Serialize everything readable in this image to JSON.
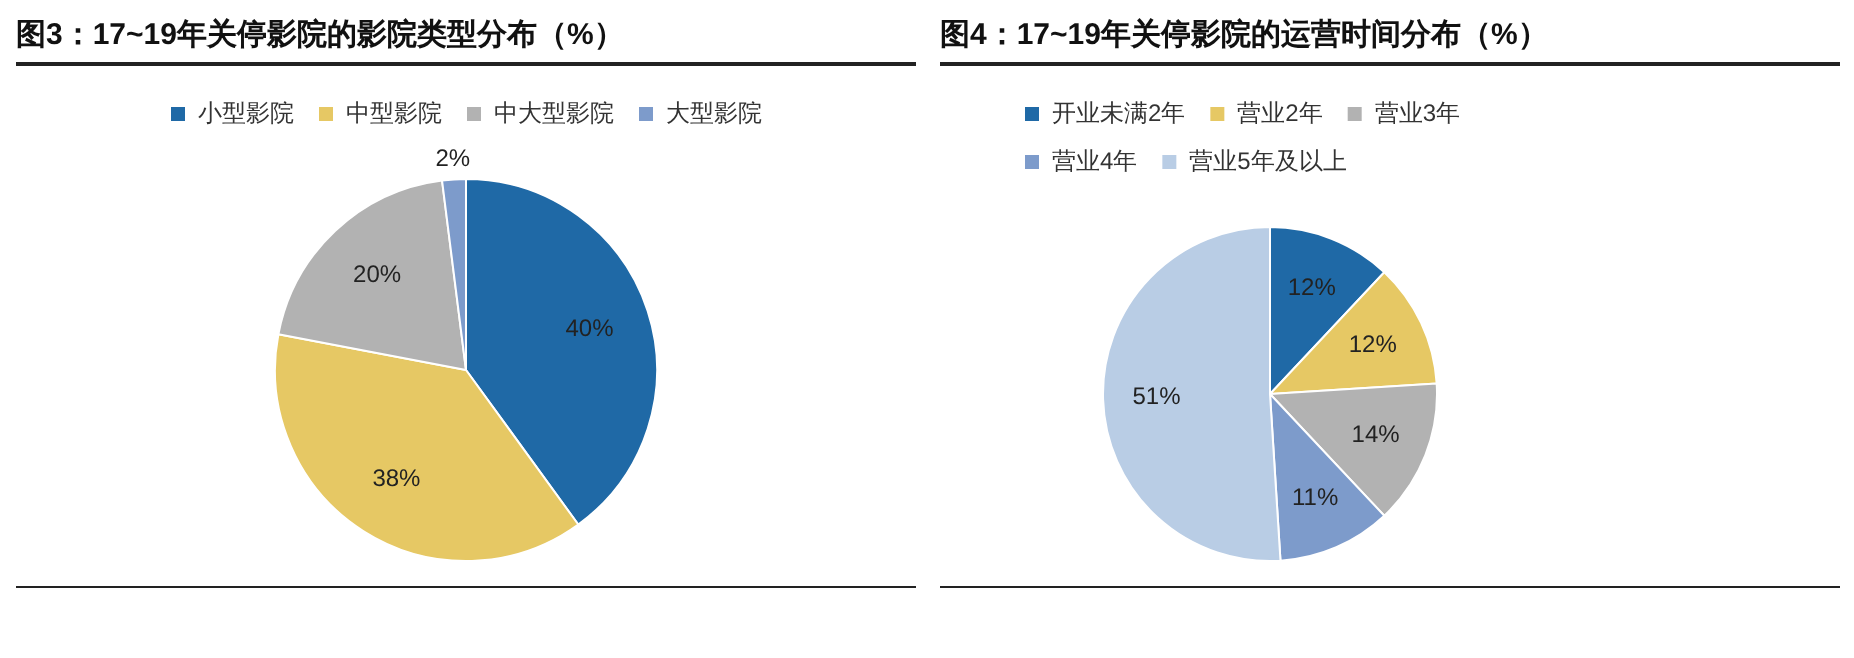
{
  "chart_data": [
    {
      "type": "pie",
      "title": "图3：17~19年关停影院的影院类型分布（%）",
      "categories": [
        "小型影院",
        "中型影院",
        "中大型影院",
        "大型影院"
      ],
      "values": [
        40,
        38,
        20,
        2
      ],
      "colors": [
        "#1f69a6",
        "#e6c864",
        "#b2b2b2",
        "#7d9bcb"
      ],
      "value_labels": [
        "40%",
        "38%",
        "20%",
        "2%"
      ],
      "legend": "top"
    },
    {
      "type": "pie",
      "title": "图4：17~19年关停影院的运营时间分布（%）",
      "categories": [
        "开业未满2年",
        "营业2年",
        "营业3年",
        "营业4年",
        "营业5年及以上"
      ],
      "values": [
        12,
        12,
        14,
        11,
        51
      ],
      "colors": [
        "#1f69a6",
        "#e6c864",
        "#b2b2b2",
        "#7d9bcb",
        "#b9cde5"
      ],
      "value_labels": [
        "12%",
        "12%",
        "14%",
        "11%",
        "51%"
      ],
      "legend": "top left"
    }
  ]
}
